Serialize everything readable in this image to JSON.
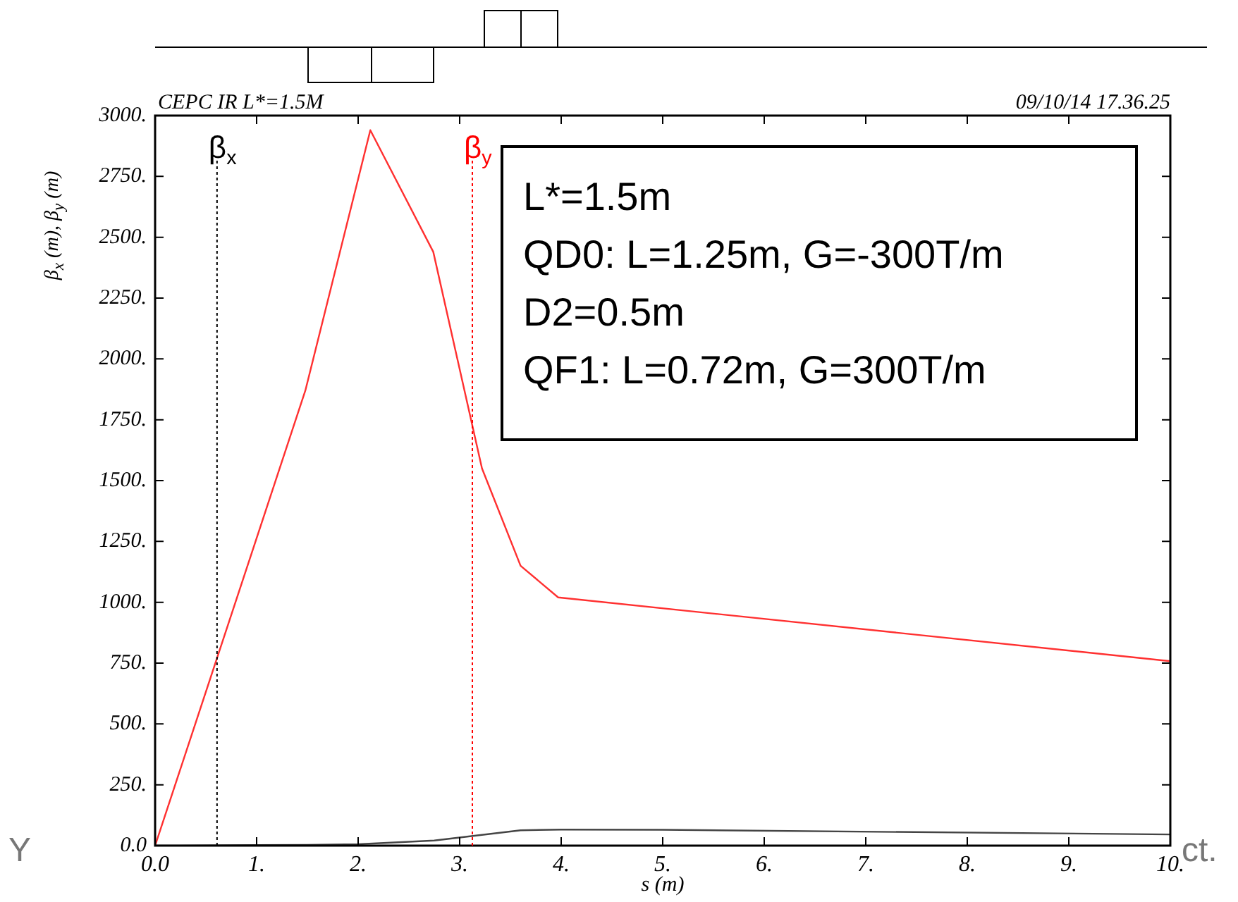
{
  "chart_data": {
    "type": "line",
    "title": "CEPC IR L*=1.5M",
    "subtitle": "09/10/14 17.36.25",
    "xlabel": "s (m)",
    "ylabel": "β$_{x}$ (m), β$_{y}$ (m)",
    "xlim": [
      0,
      10
    ],
    "xticks": [
      {
        "value": 0,
        "label": "0.0"
      },
      {
        "value": 1,
        "label": "1."
      },
      {
        "value": 2,
        "label": "2."
      },
      {
        "value": 3,
        "label": "3."
      },
      {
        "value": 4,
        "label": "4."
      },
      {
        "value": 5,
        "label": "5."
      },
      {
        "value": 6,
        "label": "6."
      },
      {
        "value": 7,
        "label": "7."
      },
      {
        "value": 8,
        "label": "8."
      },
      {
        "value": 9,
        "label": "9."
      },
      {
        "value": 10,
        "label": "10."
      }
    ],
    "ylim": [
      0,
      3000
    ],
    "yticks": [
      {
        "value": 0,
        "label": "0.0"
      },
      {
        "value": 250,
        "label": "250."
      },
      {
        "value": 500,
        "label": "500."
      },
      {
        "value": 750,
        "label": "750."
      },
      {
        "value": 1000,
        "label": "1000."
      },
      {
        "value": 1250,
        "label": "1250."
      },
      {
        "value": 1500,
        "label": "1500."
      },
      {
        "value": 1750,
        "label": "1750."
      },
      {
        "value": 2000,
        "label": "2000."
      },
      {
        "value": 2250,
        "label": "2250."
      },
      {
        "value": 2500,
        "label": "2500."
      },
      {
        "value": 2750,
        "label": "2750."
      },
      {
        "value": 3000,
        "label": "3000."
      }
    ],
    "series": [
      {
        "color": "#ff3030",
        "x": [
          0,
          1.48,
          2.12,
          2.74,
          3.22,
          3.6,
          3.97,
          10
        ],
        "values": [
          0,
          1870,
          2940,
          2440,
          1550,
          1150,
          1020,
          758
        ]
      },
      {
        "color": "#444444",
        "x": [
          0,
          1,
          1.5,
          2,
          2.75,
          3.6,
          4,
          5,
          10
        ],
        "values": [
          0,
          2,
          3,
          6,
          21,
          63,
          66,
          65,
          46
        ]
      }
    ],
    "ref_lines": [
      {
        "axis": "x",
        "value": 0.61,
        "label": "β$_{x}$",
        "color": "#000000",
        "line_style": "dotted"
      },
      {
        "axis": "x",
        "value": 3.125,
        "label": "β$_{y}$",
        "color": "#ff0000",
        "line_style": "dotted"
      }
    ],
    "annotations": [
      "L*=1.5m\nQD0: L=1.25m, G=-300T/m\nD2=0.5m\nQF1: L=0.72m, G=300T/m",
      "Y",
      "ct."
    ],
    "grid": false,
    "legend": false,
    "marker": "none",
    "line_style": "solid"
  }
}
